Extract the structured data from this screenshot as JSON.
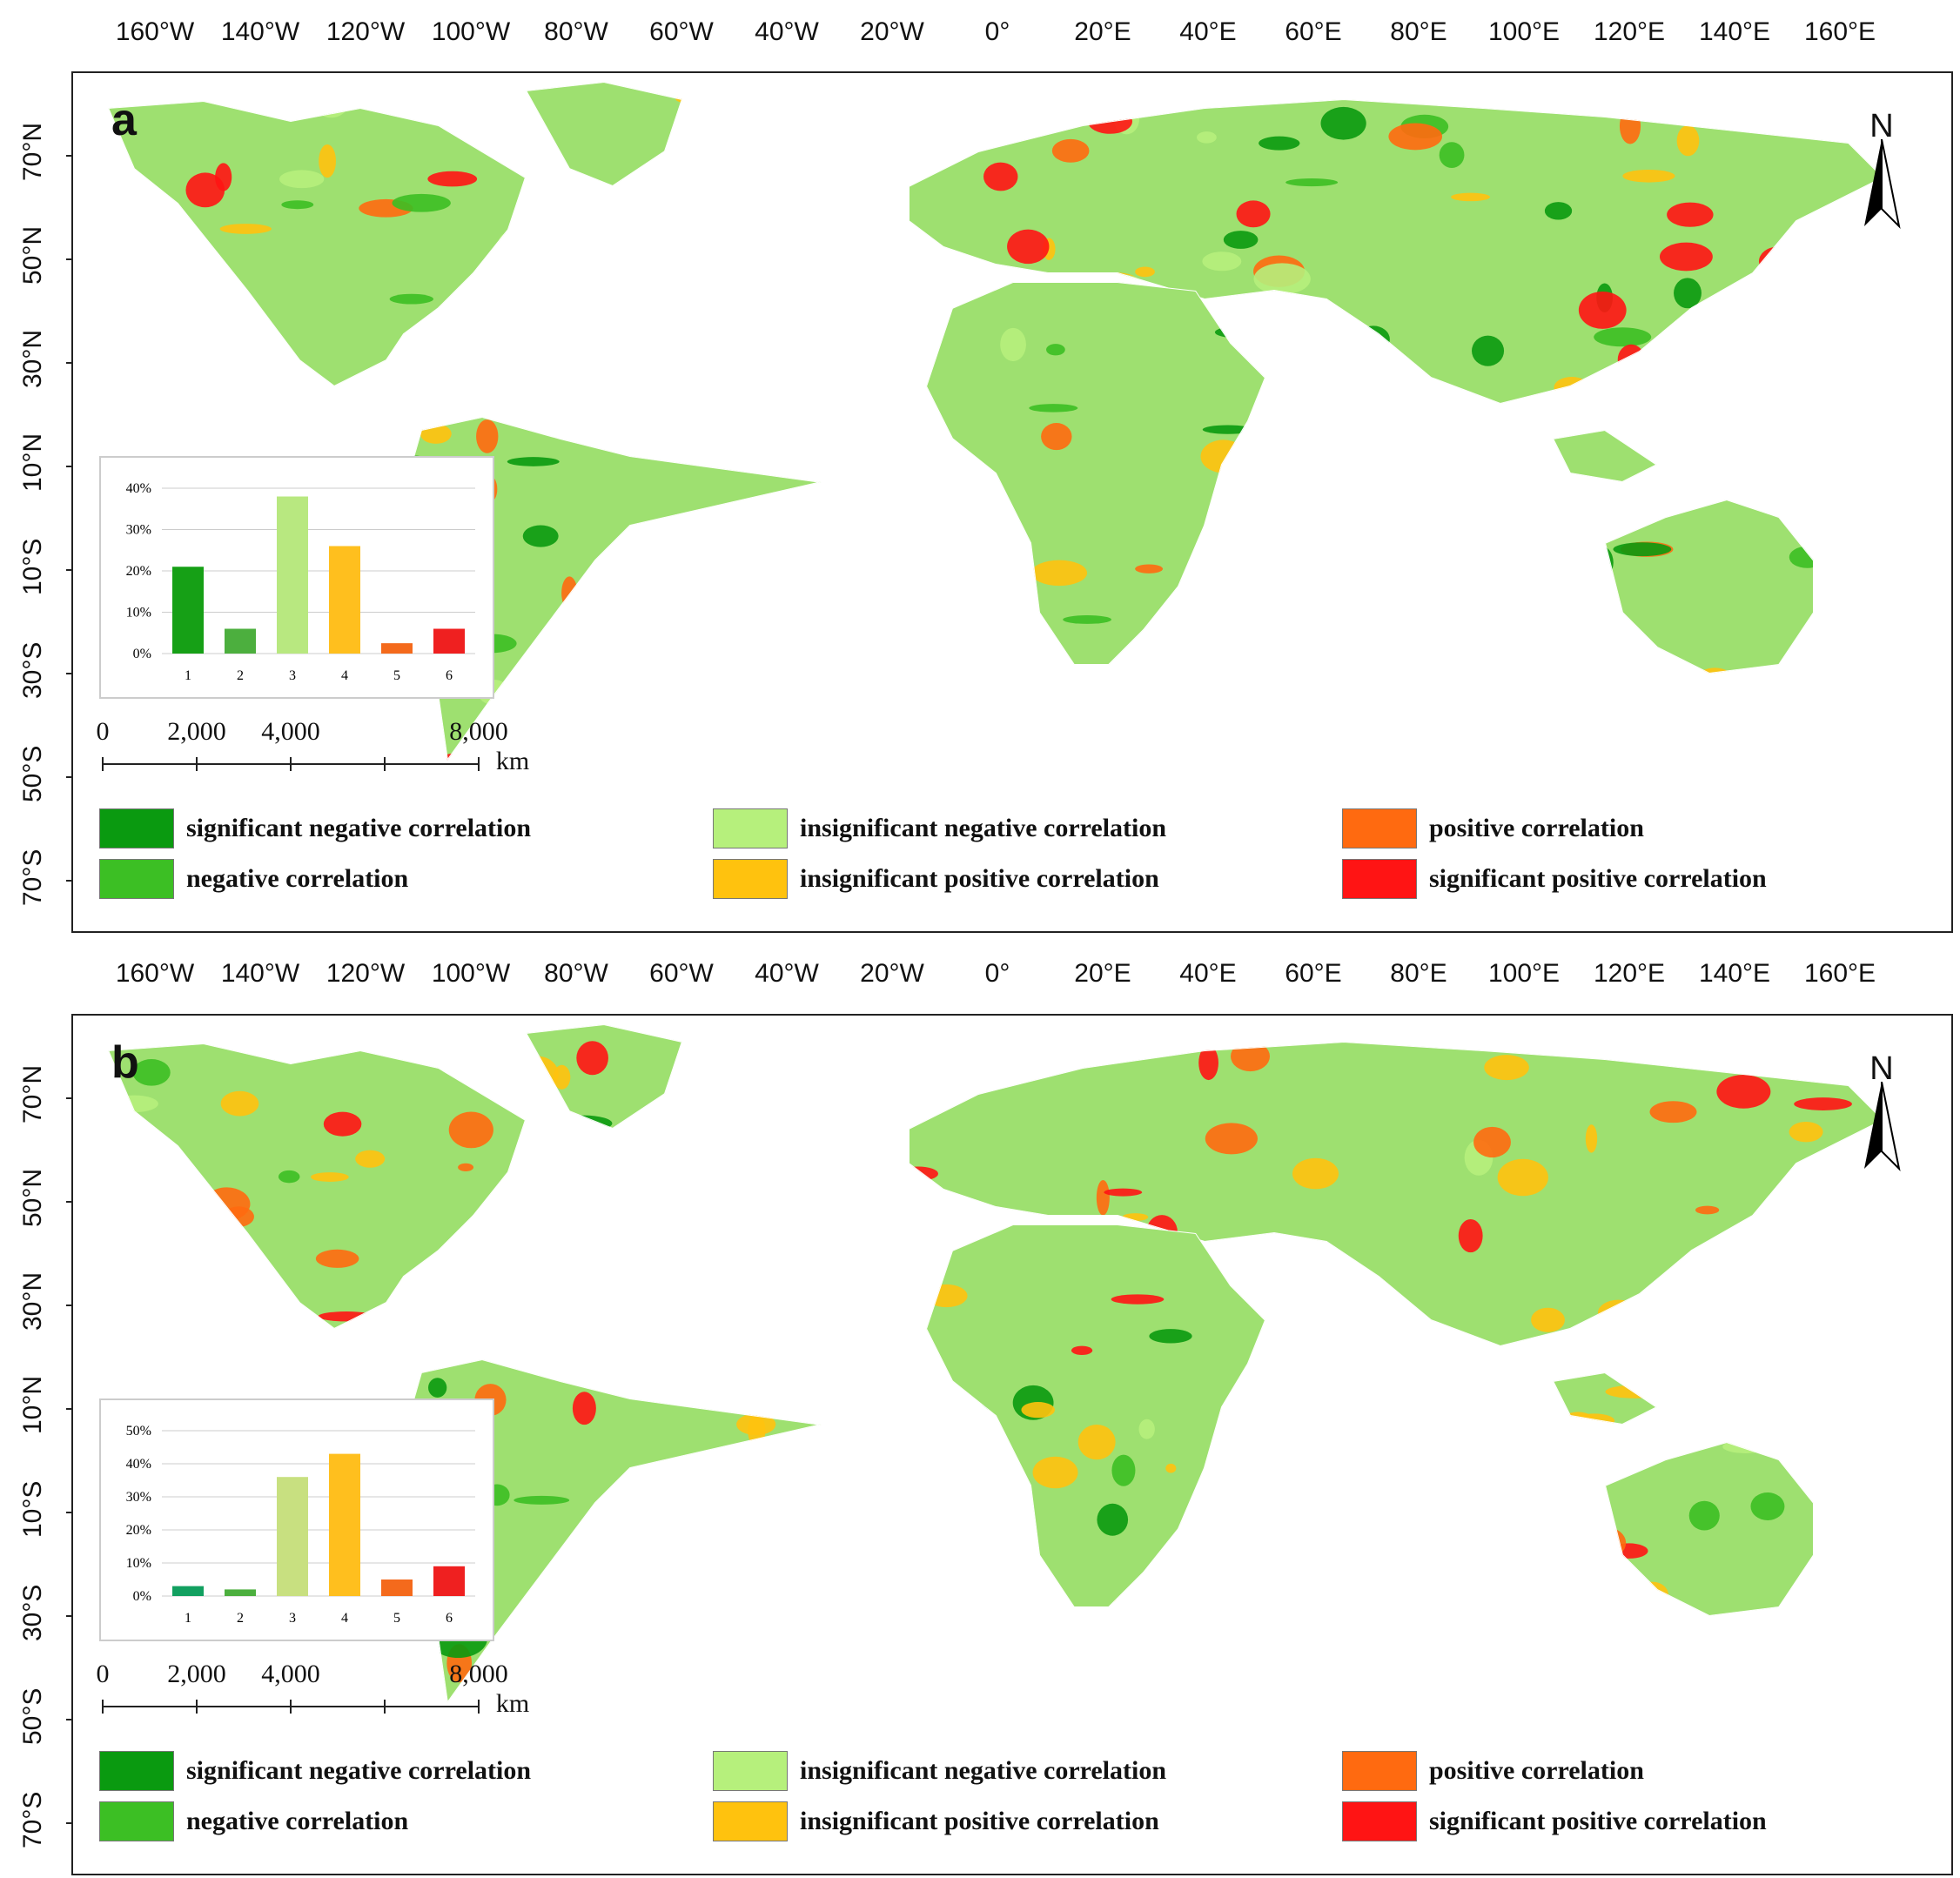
{
  "lon_labels": [
    "160°W",
    "140°W",
    "120°W",
    "100°W",
    "80°W",
    "60°W",
    "40°W",
    "20°W",
    "0°",
    "20°E",
    "40°E",
    "60°E",
    "80°E",
    "100°E",
    "120°E",
    "140°E",
    "160°E"
  ],
  "lat_labels": [
    "70°N",
    "50°N",
    "30°N",
    "10°N",
    "10°S",
    "30°S",
    "50°S",
    "70°S"
  ],
  "north_label": "N",
  "scale": {
    "labels": [
      "0",
      "2,000",
      "4,000",
      "8,000"
    ],
    "unit": "km"
  },
  "legend": [
    {
      "label": "significant negative correlation",
      "color": "#0a9a10"
    },
    {
      "label": "insignificant negative correlation",
      "color": "#b6f07c"
    },
    {
      "label": "positive correlation",
      "color": "#ff6a10"
    },
    {
      "label": "negative correlation",
      "color": "#3cbf24"
    },
    {
      "label": "insignificant positive correlation",
      "color": "#ffc20e"
    },
    {
      "label": "significant positive correlation",
      "color": "#ff1414"
    }
  ],
  "panels": [
    {
      "letter": "a",
      "chart_data": {
        "type": "bar",
        "categories": [
          "1",
          "2",
          "3",
          "4",
          "5",
          "6"
        ],
        "values": [
          21,
          6,
          38,
          26,
          2.5,
          6
        ],
        "ylim": [
          0,
          40
        ],
        "yticks": [
          "0%",
          "10%",
          "20%",
          "30%",
          "40%"
        ],
        "colors": [
          "#16a016",
          "#4caf3e",
          "#b8e880",
          "#ffbf1e",
          "#f46a1c",
          "#ef2020"
        ]
      }
    },
    {
      "letter": "b",
      "chart_data": {
        "type": "bar",
        "categories": [
          "1",
          "2",
          "3",
          "4",
          "5",
          "6"
        ],
        "values": [
          3,
          2,
          36,
          43,
          5,
          9
        ],
        "ylim": [
          0,
          50
        ],
        "yticks": [
          "0%",
          "10%",
          "20%",
          "30%",
          "40%",
          "50%"
        ],
        "colors": [
          "#12a060",
          "#4caf3e",
          "#c8e080",
          "#ffbf1e",
          "#f46a1c",
          "#ef2020"
        ]
      }
    }
  ]
}
